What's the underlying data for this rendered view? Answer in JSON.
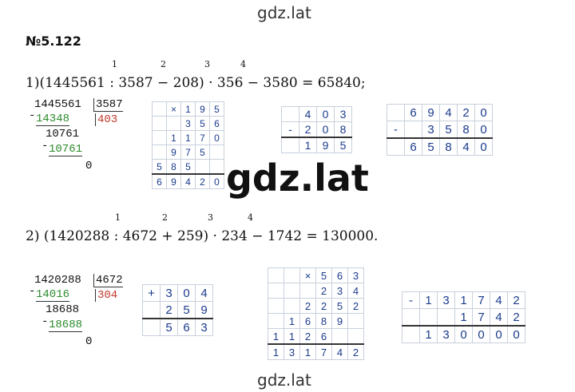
{
  "header": {
    "site": "gdz.lat"
  },
  "task_number": "№5.122",
  "problems": [
    {
      "order_marks": [
        "1",
        "2",
        "3",
        "4"
      ],
      "expression": "1)(1445561 : 3587 − 208) · 356 − 3580 = 65840;",
      "division": {
        "dividend": 1445561,
        "divisor": 3587,
        "quotient": 403,
        "steps": [
          {
            "sign": "-",
            "value": 14348
          },
          {
            "value": 10761
          },
          {
            "sign": "-",
            "value": 10761
          },
          {
            "value": 0
          }
        ]
      },
      "grids": [
        {
          "rows": [
            [
              "",
              "×",
              "1",
              "9",
              "5"
            ],
            [
              "",
              "",
              "3",
              "5",
              "6"
            ],
            [
              "",
              "1",
              "1",
              "7",
              "0"
            ],
            [
              "",
              "9",
              "7",
              "5",
              ""
            ],
            [
              "5",
              "8",
              "5",
              "",
              ""
            ],
            [
              "6",
              "9",
              "4",
              "2",
              "0"
            ]
          ]
        },
        {
          "rows": [
            [
              "",
              "4",
              "0",
              "3"
            ],
            [
              "-",
              "2",
              "0",
              "8"
            ],
            [
              "",
              "1",
              "9",
              "5"
            ]
          ]
        },
        {
          "rows": [
            [
              "",
              "6",
              "9",
              "4",
              "2",
              "0"
            ],
            [
              "-",
              "",
              "3",
              "5",
              "8",
              "0"
            ],
            [
              "",
              "6",
              "5",
              "8",
              "4",
              "0"
            ]
          ]
        }
      ]
    },
    {
      "order_marks": [
        "1",
        "2",
        "3",
        "4"
      ],
      "expression": "2) (1420288 : 4672 + 259) · 234 − 1742 = 130000.",
      "division": {
        "dividend": 1420288,
        "divisor": 4672,
        "quotient": 304,
        "steps": [
          {
            "sign": "-",
            "value": 14016
          },
          {
            "value": 18688
          },
          {
            "sign": "-",
            "value": 18688
          },
          {
            "value": 0
          }
        ]
      },
      "grids": [
        {
          "rows": [
            [
              "+",
              "3",
              "0",
              "4"
            ],
            [
              "",
              "2",
              "5",
              "9"
            ],
            [
              "",
              "5",
              "6",
              "3"
            ]
          ]
        },
        {
          "rows": [
            [
              "",
              "",
              "×",
              "5",
              "6",
              "3"
            ],
            [
              "",
              "",
              "",
              "2",
              "3",
              "4"
            ],
            [
              "",
              "",
              "2",
              "2",
              "5",
              "2"
            ],
            [
              "",
              "1",
              "6",
              "8",
              "9",
              ""
            ],
            [
              "1",
              "1",
              "2",
              "6",
              "",
              ""
            ],
            [
              "1",
              "3",
              "1",
              "7",
              "4",
              "2"
            ]
          ]
        },
        {
          "rows": [
            [
              "-",
              "1",
              "3",
              "1",
              "7",
              "4",
              "2"
            ],
            [
              "",
              "",
              "",
              "1",
              "7",
              "4",
              "2"
            ],
            [
              "",
              "1",
              "3",
              "0",
              "0",
              "0",
              "0"
            ]
          ]
        }
      ]
    }
  ],
  "watermark": "gdz.lat",
  "footer": "gdz.lat"
}
